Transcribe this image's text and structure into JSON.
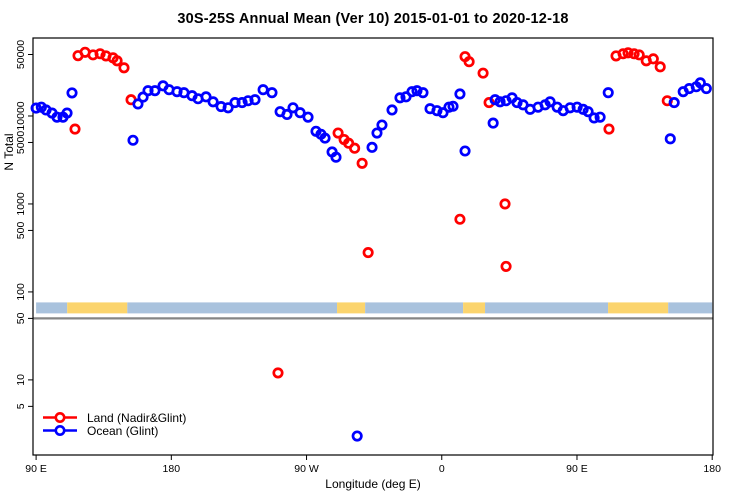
{
  "chart_data": {
    "type": "scatter",
    "title": "30S-25S Annual Mean (Ver 10)   2015-01-01 to 2020-12-18",
    "xlabel": "Longitude (deg E)",
    "ylabel": "N Total",
    "x_axis": {
      "note": "longitude unwrapped eastward, 90E to 180 via 0",
      "range": [
        90,
        540
      ],
      "ticks": [
        {
          "lon": 90,
          "label": "90 E"
        },
        {
          "lon": 180,
          "label": "180"
        },
        {
          "lon": 270,
          "label": "90 W"
        },
        {
          "lon": 360,
          "label": "0"
        },
        {
          "lon": 450,
          "label": "90 E"
        },
        {
          "lon": 540,
          "label": "180"
        }
      ]
    },
    "y_axis": {
      "scale": "log",
      "range": [
        1.4,
        77000
      ],
      "ticks": [
        {
          "value": 5,
          "label": "5"
        },
        {
          "value": 10,
          "label": "10"
        },
        {
          "value": 50,
          "label": "50"
        },
        {
          "value": 100,
          "label": "100"
        },
        {
          "value": 500,
          "label": "500"
        },
        {
          "value": 1000,
          "label": "1000"
        },
        {
          "value": 5000,
          "label": "5000"
        },
        {
          "value": 10000,
          "label": "10000"
        },
        {
          "value": 50000,
          "label": "50000"
        }
      ]
    },
    "reference_line_value": 50,
    "reference_line_color": "#858585",
    "surface_band": {
      "value_top": 76,
      "value_bottom": 57,
      "colors": {
        "ocean": "#a9c2dd",
        "land": "#fbd46d"
      },
      "segments": [
        {
          "from": 90,
          "to": 110.7,
          "type": "ocean"
        },
        {
          "from": 110.7,
          "to": 150.7,
          "type": "land"
        },
        {
          "from": 150.7,
          "to": 290.3,
          "type": "ocean"
        },
        {
          "from": 290.3,
          "to": 309.0,
          "type": "land"
        },
        {
          "from": 309.0,
          "to": 374.2,
          "type": "ocean"
        },
        {
          "from": 374.2,
          "to": 388.8,
          "type": "land"
        },
        {
          "from": 388.8,
          "to": 470.7,
          "type": "ocean"
        },
        {
          "from": 470.7,
          "to": 510.7,
          "type": "land"
        },
        {
          "from": 510.7,
          "to": 540,
          "type": "ocean"
        }
      ]
    },
    "series": [
      {
        "name": "Land (Nadir&Glint)",
        "color": "#ff0000",
        "points": [
          [
            115.9,
            7100
          ],
          [
            117.9,
            48500
          ],
          [
            122.6,
            53000
          ],
          [
            127.9,
            49500
          ],
          [
            132.6,
            51000
          ],
          [
            136.5,
            48200
          ],
          [
            141.2,
            45800
          ],
          [
            143.9,
            42400
          ],
          [
            148.5,
            35300
          ],
          [
            153.2,
            15300
          ],
          [
            251.0,
            12
          ],
          [
            291.0,
            6400
          ],
          [
            295.0,
            5400
          ],
          [
            298.0,
            4900
          ],
          [
            302.0,
            4300
          ],
          [
            307.0,
            2900
          ],
          [
            311.0,
            280
          ],
          [
            372.1,
            670
          ],
          [
            375.5,
            47300
          ],
          [
            378.2,
            41400
          ],
          [
            387.5,
            30700
          ],
          [
            391.5,
            14200
          ],
          [
            402.1,
            1000
          ],
          [
            402.8,
            195
          ],
          [
            471.3,
            7100
          ],
          [
            476.0,
            48200
          ],
          [
            480.7,
            51000
          ],
          [
            484.0,
            52300
          ],
          [
            488.0,
            51000
          ],
          [
            491.4,
            49500
          ],
          [
            496.1,
            42400
          ],
          [
            500.8,
            44600
          ],
          [
            505.4,
            36200
          ],
          [
            510.1,
            14900
          ]
        ]
      },
      {
        "name": "Ocean (Glint)",
        "color": "#0000ff",
        "points": [
          [
            90.0,
            12300
          ],
          [
            93.5,
            12600
          ],
          [
            96.6,
            11700
          ],
          [
            100.6,
            10800
          ],
          [
            103.9,
            9700
          ],
          [
            107.9,
            9700
          ],
          [
            110.6,
            10800
          ],
          [
            113.9,
            18300
          ],
          [
            154.5,
            5300
          ],
          [
            157.8,
            13700
          ],
          [
            161.2,
            16400
          ],
          [
            164.5,
            19400
          ],
          [
            169.1,
            19400
          ],
          [
            174.5,
            22000
          ],
          [
            178.5,
            19900
          ],
          [
            183.8,
            18900
          ],
          [
            188.4,
            18400
          ],
          [
            193.8,
            17000
          ],
          [
            197.8,
            15700
          ],
          [
            203.1,
            16500
          ],
          [
            207.8,
            14500
          ],
          [
            213.1,
            12800
          ],
          [
            217.8,
            12400
          ],
          [
            222.4,
            14200
          ],
          [
            227.1,
            14200
          ],
          [
            231.1,
            14900
          ],
          [
            235.7,
            15300
          ],
          [
            241.1,
            19900
          ],
          [
            247.0,
            18400
          ],
          [
            252.4,
            11200
          ],
          [
            257.0,
            10400
          ],
          [
            261.0,
            12400
          ],
          [
            265.7,
            10900
          ],
          [
            271.0,
            9700
          ],
          [
            276.3,
            6700
          ],
          [
            279.6,
            6200
          ],
          [
            282.3,
            5600
          ],
          [
            287.0,
            3900
          ],
          [
            289.6,
            3400
          ],
          [
            303.7,
            2.3
          ],
          [
            313.6,
            4400
          ],
          [
            316.9,
            6400
          ],
          [
            320.2,
            7900
          ],
          [
            326.9,
            11700
          ],
          [
            332.2,
            16100
          ],
          [
            336.2,
            16500
          ],
          [
            340.2,
            18900
          ],
          [
            343.5,
            19400
          ],
          [
            347.5,
            18400
          ],
          [
            352.2,
            12100
          ],
          [
            356.8,
            11500
          ],
          [
            360.8,
            10900
          ],
          [
            364.8,
            12600
          ],
          [
            367.5,
            12900
          ],
          [
            372.1,
            17800
          ],
          [
            375.5,
            4000
          ],
          [
            394.2,
            8300
          ],
          [
            395.5,
            15300
          ],
          [
            398.8,
            14500
          ],
          [
            402.8,
            14900
          ],
          [
            406.8,
            16100
          ],
          [
            410.1,
            14200
          ],
          [
            414.1,
            13400
          ],
          [
            418.8,
            11900
          ],
          [
            424.1,
            12600
          ],
          [
            428.8,
            13400
          ],
          [
            432.1,
            14500
          ],
          [
            436.8,
            12600
          ],
          [
            440.8,
            11500
          ],
          [
            445.4,
            12400
          ],
          [
            450.1,
            12600
          ],
          [
            454.1,
            11900
          ],
          [
            457.4,
            11200
          ],
          [
            461.4,
            9500
          ],
          [
            465.4,
            9700
          ],
          [
            470.8,
            18400
          ],
          [
            512.1,
            5500
          ],
          [
            514.7,
            14200
          ],
          [
            520.7,
            18900
          ],
          [
            524.7,
            20500
          ],
          [
            529.4,
            21500
          ],
          [
            532.1,
            23800
          ],
          [
            536.1,
            20500
          ]
        ]
      }
    ]
  }
}
